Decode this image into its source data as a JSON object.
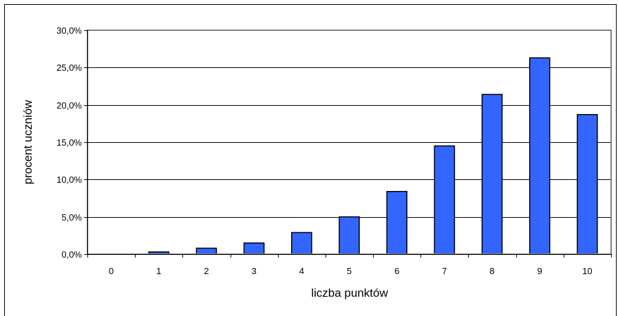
{
  "chart_data": {
    "type": "bar",
    "title": "",
    "xlabel": "liczba punktów",
    "ylabel": "procent uczniów",
    "categories": [
      "0",
      "1",
      "2",
      "3",
      "4",
      "5",
      "6",
      "7",
      "8",
      "9",
      "10"
    ],
    "values": [
      0.0,
      0.3,
      0.8,
      1.5,
      2.9,
      5.0,
      8.4,
      14.5,
      21.4,
      26.3,
      18.7
    ],
    "ylim": [
      0,
      30
    ],
    "yticks": [
      0,
      5,
      10,
      15,
      20,
      25,
      30
    ],
    "ytick_labels": [
      "0,0%",
      "5,0%",
      "10,0%",
      "15,0%",
      "20,0%",
      "25,0%",
      "30,0%"
    ],
    "grid": true,
    "legend": "none",
    "colors": {
      "bar_fill": "#3366ff",
      "bar_stroke": "#000000",
      "gridline": "#000000",
      "plot_border": "#808080",
      "frame": "#000000"
    }
  }
}
